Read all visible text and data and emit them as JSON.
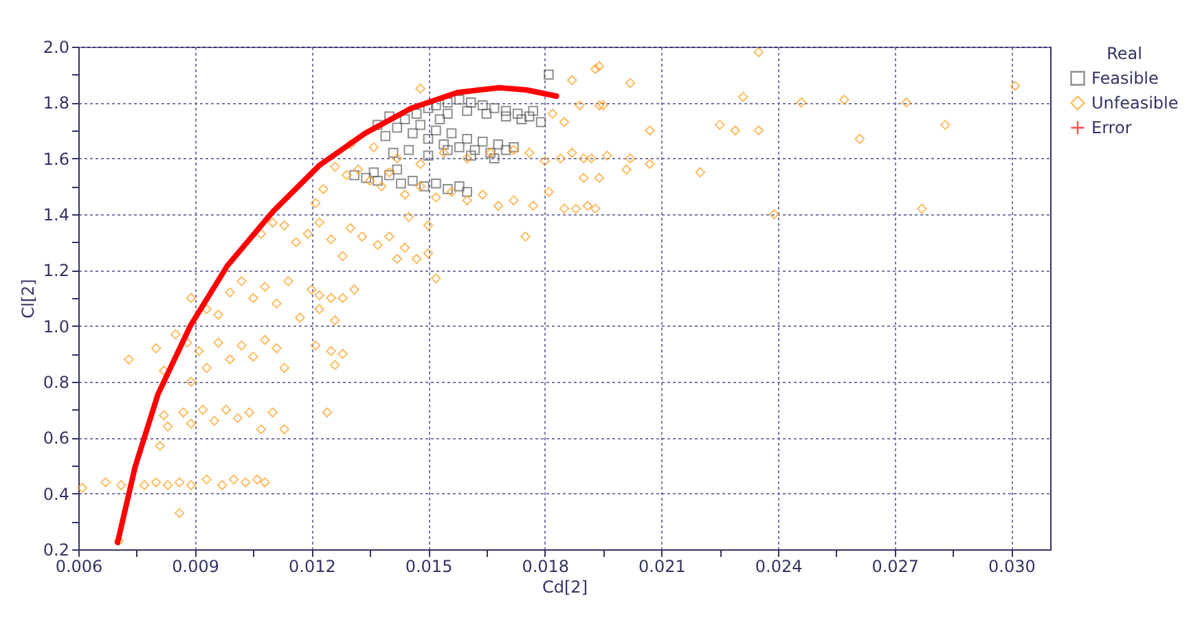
{
  "chart_data": {
    "type": "scatter",
    "xlabel": "Cd[2]",
    "ylabel": "Cl[2]",
    "legend_title": "Real",
    "legend": "right",
    "grid": true,
    "xlim": [
      0.006,
      0.031
    ],
    "ylim": [
      0.2,
      2.0
    ],
    "xticks": [
      {
        "value": 0.006,
        "label": "0.006"
      },
      {
        "value": 0.0075,
        "label": null
      },
      {
        "value": 0.009,
        "label": "0.009"
      },
      {
        "value": 0.0105,
        "label": null
      },
      {
        "value": 0.012,
        "label": "0.012"
      },
      {
        "value": 0.0135,
        "label": null
      },
      {
        "value": 0.015,
        "label": "0.015"
      },
      {
        "value": 0.0165,
        "label": null
      },
      {
        "value": 0.018,
        "label": "0.018"
      },
      {
        "value": 0.0195,
        "label": null
      },
      {
        "value": 0.021,
        "label": "0.021"
      },
      {
        "value": 0.0225,
        "label": null
      },
      {
        "value": 0.024,
        "label": "0.024"
      },
      {
        "value": 0.0255,
        "label": null
      },
      {
        "value": 0.027,
        "label": "0.027"
      },
      {
        "value": 0.0285,
        "label": null
      },
      {
        "value": 0.03,
        "label": "0.030"
      }
    ],
    "yticks": [
      {
        "value": 0.2,
        "label": "0.2"
      },
      {
        "value": 0.3,
        "label": null
      },
      {
        "value": 0.4,
        "label": "0.4"
      },
      {
        "value": 0.5,
        "label": null
      },
      {
        "value": 0.6,
        "label": "0.6"
      },
      {
        "value": 0.7,
        "label": null
      },
      {
        "value": 0.8,
        "label": "0.8"
      },
      {
        "value": 0.9,
        "label": null
      },
      {
        "value": 1.0,
        "label": "1.0"
      },
      {
        "value": 1.1,
        "label": null
      },
      {
        "value": 1.2,
        "label": "1.2"
      },
      {
        "value": 1.3,
        "label": null
      },
      {
        "value": 1.4,
        "label": "1.4"
      },
      {
        "value": 1.5,
        "label": null
      },
      {
        "value": 1.6,
        "label": "1.6"
      },
      {
        "value": 1.7,
        "label": null
      },
      {
        "value": 1.8,
        "label": "1.8"
      },
      {
        "value": 1.9,
        "label": null
      },
      {
        "value": 2.0,
        "label": "2.0"
      }
    ],
    "series": [
      {
        "name": "Feasible",
        "marker": "square",
        "color": "#606060",
        "x": [
          0.0152,
          0.0155,
          0.0158,
          0.0161,
          0.0164,
          0.0167,
          0.017,
          0.0173,
          0.0176,
          0.0179,
          0.0155,
          0.016,
          0.0165,
          0.017,
          0.0174,
          0.0177,
          0.015,
          0.0137,
          0.0139,
          0.014,
          0.0142,
          0.0144,
          0.0146,
          0.0148,
          0.015,
          0.0152,
          0.0154,
          0.0156,
          0.0158,
          0.016,
          0.0162,
          0.0164,
          0.0166,
          0.0168,
          0.017,
          0.0172,
          0.0141,
          0.0145,
          0.015,
          0.0155,
          0.0161,
          0.0167,
          0.0153,
          0.0147,
          0.0131,
          0.0134,
          0.0137,
          0.014,
          0.0143,
          0.0146,
          0.0149,
          0.0152,
          0.0155,
          0.0158,
          0.016,
          0.0142,
          0.0136,
          0.0181
        ],
        "values": [
          1.79,
          1.8,
          1.81,
          1.8,
          1.79,
          1.78,
          1.77,
          1.76,
          1.75,
          1.73,
          1.76,
          1.77,
          1.76,
          1.75,
          1.74,
          1.77,
          1.78,
          1.72,
          1.68,
          1.75,
          1.71,
          1.74,
          1.69,
          1.72,
          1.67,
          1.7,
          1.65,
          1.69,
          1.64,
          1.67,
          1.63,
          1.66,
          1.62,
          1.65,
          1.63,
          1.64,
          1.62,
          1.63,
          1.61,
          1.63,
          1.61,
          1.6,
          1.74,
          1.76,
          1.54,
          1.53,
          1.52,
          1.54,
          1.51,
          1.52,
          1.5,
          1.51,
          1.49,
          1.5,
          1.48,
          1.56,
          1.55,
          1.9
        ]
      },
      {
        "name": "Unfeasible",
        "marker": "diamond",
        "color": "#ffa020",
        "x": [
          0.0061,
          0.0067,
          0.0071,
          0.0077,
          0.008,
          0.0083,
          0.0086,
          0.0089,
          0.0093,
          0.0097,
          0.01,
          0.0103,
          0.0106,
          0.0108,
          0.0086,
          0.00704,
          0.0073,
          0.0082,
          0.0083,
          0.0087,
          0.0089,
          0.0092,
          0.0095,
          0.0098,
          0.0101,
          0.0104,
          0.0107,
          0.011,
          0.0113,
          0.0081,
          0.0124,
          0.008,
          0.0082,
          0.0085,
          0.0088,
          0.0091,
          0.0093,
          0.0096,
          0.0099,
          0.0102,
          0.0105,
          0.0108,
          0.0111,
          0.0113,
          0.0121,
          0.0125,
          0.0126,
          0.0128,
          0.0089,
          0.0089,
          0.0093,
          0.0096,
          0.0099,
          0.0102,
          0.0105,
          0.0108,
          0.0111,
          0.0114,
          0.0117,
          0.012,
          0.0122,
          0.0125,
          0.0128,
          0.0131,
          0.0122,
          0.0126,
          0.0107,
          0.011,
          0.0113,
          0.0116,
          0.0119,
          0.0122,
          0.0125,
          0.0128,
          0.013,
          0.0133,
          0.0137,
          0.014,
          0.0142,
          0.0144,
          0.015,
          0.0152,
          0.0147,
          0.0121,
          0.0145,
          0.015,
          0.0126,
          0.0129,
          0.0132,
          0.0135,
          0.0138,
          0.014,
          0.0144,
          0.0148,
          0.0152,
          0.0156,
          0.016,
          0.0164,
          0.0168,
          0.0172,
          0.0177,
          0.0181,
          0.0175,
          0.0123,
          0.013,
          0.0136,
          0.0142,
          0.0148,
          0.0154,
          0.016,
          0.0166,
          0.0172,
          0.0176,
          0.018,
          0.0184,
          0.0187,
          0.019,
          0.0185,
          0.0188,
          0.0191,
          0.019,
          0.0148,
          0.0182,
          0.0185,
          0.0187,
          0.0189,
          0.0194,
          0.0193,
          0.0202,
          0.0194,
          0.0195,
          0.0207,
          0.0192,
          0.0196,
          0.0202,
          0.0207,
          0.0201,
          0.0194,
          0.0193,
          0.022,
          0.0225,
          0.0229,
          0.0231,
          0.0235,
          0.0235,
          0.0239,
          0.0246,
          0.0257,
          0.0261,
          0.0273,
          0.0277,
          0.0283,
          0.0301
        ],
        "values": [
          0.42,
          0.44,
          0.43,
          0.43,
          0.44,
          0.43,
          0.44,
          0.43,
          0.45,
          0.43,
          0.45,
          0.44,
          0.45,
          0.44,
          0.33,
          0.23,
          0.88,
          0.68,
          0.64,
          0.69,
          0.65,
          0.7,
          0.66,
          0.7,
          0.67,
          0.69,
          0.63,
          0.69,
          0.63,
          0.57,
          0.69,
          0.92,
          0.84,
          0.97,
          0.94,
          0.91,
          0.85,
          0.94,
          0.88,
          0.93,
          0.89,
          0.95,
          0.92,
          0.85,
          0.93,
          0.91,
          0.86,
          0.9,
          0.8,
          1.1,
          1.06,
          1.04,
          1.12,
          1.16,
          1.1,
          1.14,
          1.08,
          1.16,
          1.03,
          1.13,
          1.11,
          1.1,
          1.1,
          1.13,
          1.06,
          1.02,
          1.33,
          1.37,
          1.36,
          1.3,
          1.33,
          1.37,
          1.31,
          1.25,
          1.35,
          1.32,
          1.29,
          1.32,
          1.24,
          1.28,
          1.26,
          1.17,
          1.24,
          1.44,
          1.39,
          1.36,
          1.57,
          1.54,
          1.56,
          1.52,
          1.5,
          1.55,
          1.47,
          1.5,
          1.46,
          1.48,
          1.45,
          1.47,
          1.43,
          1.45,
          1.43,
          1.48,
          1.32,
          1.49,
          1.65,
          1.64,
          1.6,
          1.58,
          1.62,
          1.6,
          1.62,
          1.63,
          1.62,
          1.59,
          1.6,
          1.62,
          1.6,
          1.42,
          1.42,
          1.43,
          1.53,
          1.85,
          1.76,
          1.73,
          1.88,
          1.79,
          1.93,
          1.92,
          1.87,
          1.79,
          1.79,
          1.7,
          1.6,
          1.61,
          1.6,
          1.58,
          1.56,
          1.53,
          1.42,
          1.55,
          1.72,
          1.7,
          1.82,
          1.7,
          1.98,
          1.4,
          1.8,
          1.81,
          1.67,
          1.8,
          1.42,
          1.72,
          1.86
        ]
      },
      {
        "name": "Error",
        "marker": "cross",
        "color": "#ff0000"
      },
      {
        "type": "line",
        "color": "#ff0000",
        "x": [
          0.00701,
          0.00746,
          0.00805,
          0.00888,
          0.00983,
          0.01101,
          0.0122,
          0.01338,
          0.01457,
          0.01575,
          0.01682,
          0.01753,
          0.0183
        ],
        "values": [
          0.225,
          0.495,
          0.756,
          1.0,
          1.215,
          1.41,
          1.575,
          1.69,
          1.78,
          1.836,
          1.853,
          1.845,
          1.823
        ]
      }
    ]
  }
}
